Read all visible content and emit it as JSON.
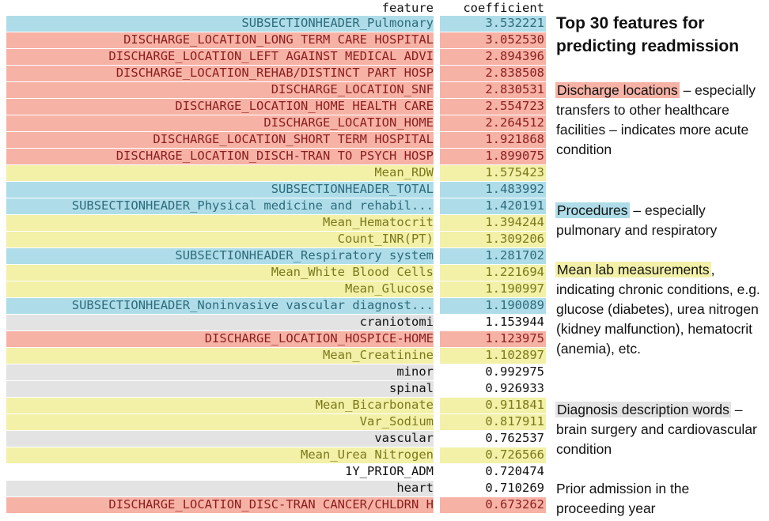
{
  "table": {
    "header": {
      "feature": "feature",
      "coefficient": "coefficient"
    },
    "rows": [
      {
        "feature": "SUBSECTIONHEADER_Pulmonary",
        "coefficient": "3.532221",
        "category": "procedure"
      },
      {
        "feature": "DISCHARGE_LOCATION_LONG TERM CARE HOSPITAL",
        "coefficient": "3.052530",
        "category": "discharge"
      },
      {
        "feature": "DISCHARGE_LOCATION_LEFT AGAINST MEDICAL ADVI",
        "coefficient": "2.894396",
        "category": "discharge"
      },
      {
        "feature": "DISCHARGE_LOCATION_REHAB/DISTINCT PART HOSP",
        "coefficient": "2.838508",
        "category": "discharge"
      },
      {
        "feature": "DISCHARGE_LOCATION_SNF",
        "coefficient": "2.830531",
        "category": "discharge"
      },
      {
        "feature": "DISCHARGE_LOCATION_HOME HEALTH CARE",
        "coefficient": "2.554723",
        "category": "discharge"
      },
      {
        "feature": "DISCHARGE_LOCATION_HOME",
        "coefficient": "2.264512",
        "category": "discharge"
      },
      {
        "feature": "DISCHARGE_LOCATION_SHORT TERM HOSPITAL",
        "coefficient": "1.921868",
        "category": "discharge"
      },
      {
        "feature": "DISCHARGE_LOCATION_DISCH-TRAN TO PSYCH HOSP",
        "coefficient": "1.899075",
        "category": "discharge"
      },
      {
        "feature": "Mean_RDW",
        "coefficient": "1.575423",
        "category": "lab"
      },
      {
        "feature": "SUBSECTIONHEADER_TOTAL",
        "coefficient": "1.483992",
        "category": "procedure"
      },
      {
        "feature": "SUBSECTIONHEADER_Physical medicine and rehabil...",
        "coefficient": "1.420191",
        "category": "procedure"
      },
      {
        "feature": "Mean_Hematocrit",
        "coefficient": "1.394244",
        "category": "lab"
      },
      {
        "feature": "Count_INR(PT)",
        "coefficient": "1.309206",
        "category": "lab"
      },
      {
        "feature": "SUBSECTIONHEADER_Respiratory system",
        "coefficient": "1.281702",
        "category": "procedure"
      },
      {
        "feature": "Mean_White Blood Cells",
        "coefficient": "1.221694",
        "category": "lab"
      },
      {
        "feature": "Mean_Glucose",
        "coefficient": "1.190997",
        "category": "lab"
      },
      {
        "feature": "SUBSECTIONHEADER_Noninvasive vascular diagnost...",
        "coefficient": "1.190089",
        "category": "procedure"
      },
      {
        "feature": "craniotomi",
        "coefficient": "1.153944",
        "category": "diagnosis"
      },
      {
        "feature": "DISCHARGE_LOCATION_HOSPICE-HOME",
        "coefficient": "1.123975",
        "category": "discharge"
      },
      {
        "feature": "Mean_Creatinine",
        "coefficient": "1.102897",
        "category": "lab"
      },
      {
        "feature": "minor",
        "coefficient": "0.992975",
        "category": "diagnosis"
      },
      {
        "feature": "spinal",
        "coefficient": "0.926933",
        "category": "diagnosis"
      },
      {
        "feature": "Mean_Bicarbonate",
        "coefficient": "0.911841",
        "category": "lab"
      },
      {
        "feature": "Var_Sodium",
        "coefficient": "0.817911",
        "category": "lab"
      },
      {
        "feature": "vascular",
        "coefficient": "0.762537",
        "category": "diagnosis"
      },
      {
        "feature": "Mean_Urea Nitrogen",
        "coefficient": "0.726566",
        "category": "lab"
      },
      {
        "feature": "1Y_PRIOR_ADM",
        "coefficient": "0.720474",
        "category": "prior"
      },
      {
        "feature": "heart",
        "coefficient": "0.710269",
        "category": "diagnosis"
      },
      {
        "feature": "DISCHARGE_LOCATION_DISC-TRAN CANCER/CHLDRN H",
        "coefficient": "0.673262",
        "category": "discharge"
      }
    ]
  },
  "notes": {
    "title_line1": "Top 30 features for",
    "title_line2": "predicting readmission",
    "discharge": {
      "tag": "Discharge locations",
      "text": " – especially transfers to other healthcare facilities – indicates more acute condition"
    },
    "procedures": {
      "tag": "Procedures",
      "text": " – especially pulmonary and respiratory"
    },
    "labs": {
      "tag": "Mean lab measurements",
      "text": ", indicating chronic conditions, e.g. glucose (diabetes), urea nitrogen (kidney malfunction), hematocrit (anemia), etc."
    },
    "diagnosis": {
      "tag": "Diagnosis description words",
      "text": " – brain surgery and cardiovascular condition"
    },
    "prior": {
      "text": "Prior admission in the proceeding year"
    }
  },
  "colors": {
    "procedure": "#aedde9",
    "discharge": "#f7b2a6",
    "lab": "#f3f0a8",
    "diagnosis": "#e3e3e3"
  }
}
